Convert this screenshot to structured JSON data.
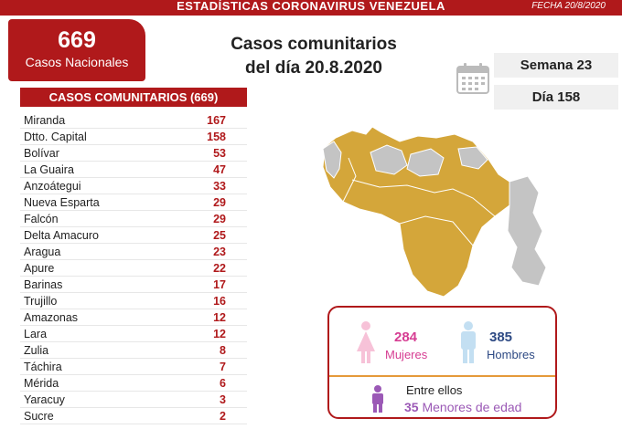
{
  "header": {
    "title": "ESTADÍSTICAS CORONAVIRUS VENEZUELA",
    "date": "FECHA 20/8/2020"
  },
  "national": {
    "count": "669",
    "label": "Casos Nacionales"
  },
  "headline": {
    "line1": "Casos comunitarios",
    "line2": "del día 20.8.2020"
  },
  "week_label": "Semana 23",
  "day_label": "Día 158",
  "community_table": {
    "header": "CASOS COMUNITARIOS (669)",
    "rows": [
      {
        "state": "Miranda",
        "cases": "167"
      },
      {
        "state": "Dtto. Capital",
        "cases": "158"
      },
      {
        "state": "Bolívar",
        "cases": "53"
      },
      {
        "state": "La Guaira",
        "cases": "47"
      },
      {
        "state": "Anzoátegui",
        "cases": "33"
      },
      {
        "state": "Nueva Esparta",
        "cases": "29"
      },
      {
        "state": "Falcón",
        "cases": "29"
      },
      {
        "state": "Delta Amacuro",
        "cases": "25"
      },
      {
        "state": "Aragua",
        "cases": "23"
      },
      {
        "state": "Apure",
        "cases": "22"
      },
      {
        "state": "Barinas",
        "cases": "17"
      },
      {
        "state": "Trujillo",
        "cases": "16"
      },
      {
        "state": "Amazonas",
        "cases": "12"
      },
      {
        "state": "Lara",
        "cases": "12"
      },
      {
        "state": "Zulia",
        "cases": "8"
      },
      {
        "state": "Táchira",
        "cases": "7"
      },
      {
        "state": "Mérida",
        "cases": "6"
      },
      {
        "state": "Yaracuy",
        "cases": "3"
      },
      {
        "state": "Sucre",
        "cases": "2"
      }
    ]
  },
  "gender": {
    "women_count": "284",
    "women_label": "Mujeres",
    "men_count": "385",
    "men_label": "Hombres",
    "among_label": "Entre ellos",
    "minors_count": "35",
    "minors_label": "Menores de edad"
  },
  "colors": {
    "brand_red": "#b0191b",
    "map_affected": "#d4a63a",
    "map_unaffected": "#c4c4c4",
    "women": "#d63d92",
    "men": "#2e4a84",
    "minors": "#9b59b6"
  },
  "icons": [
    "calendar-icon",
    "woman-icon",
    "man-icon",
    "child-icon"
  ]
}
